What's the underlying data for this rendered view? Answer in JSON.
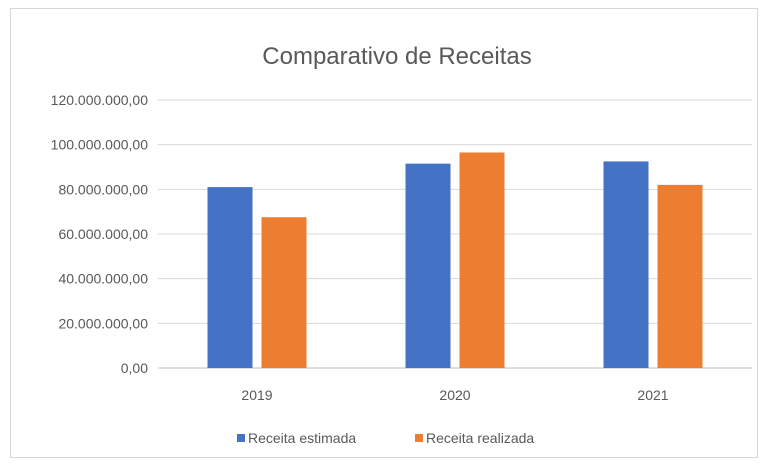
{
  "chart_data": {
    "type": "bar",
    "title": "Comparativo de Receitas",
    "categories": [
      "2019",
      "2020",
      "2021"
    ],
    "series": [
      {
        "name": "Receita estimada",
        "color": "#4472C4",
        "values": [
          81000000,
          91500000,
          92500000
        ]
      },
      {
        "name": "Receita realizada",
        "color": "#ED7D31",
        "values": [
          67500000,
          96500000,
          82000000
        ]
      }
    ],
    "ylim": [
      0,
      120000000
    ],
    "yticks": [
      0,
      20000000,
      40000000,
      60000000,
      80000000,
      100000000,
      120000000
    ],
    "ytick_labels": [
      "0,00",
      "20.000.000,00",
      "40.000.000,00",
      "60.000.000,00",
      "80.000.000,00",
      "100.000.000,00",
      "120.000.000,00"
    ],
    "grid": true,
    "legend_position": "bottom",
    "xlabel": "",
    "ylabel": ""
  }
}
